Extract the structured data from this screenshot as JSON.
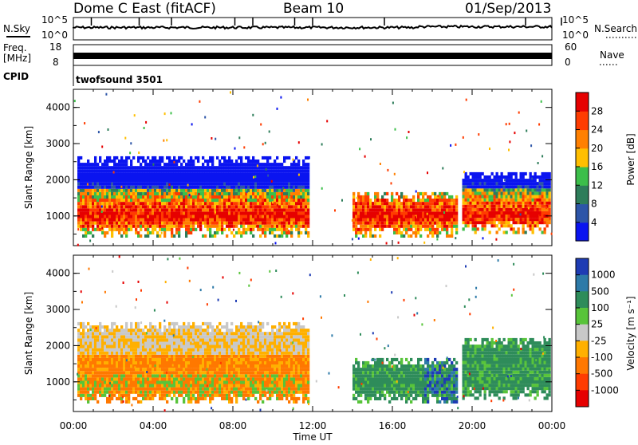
{
  "header": {
    "title": "Dome C East (fitACF)",
    "beam": "Beam 10",
    "date": "01/Sep/2013"
  },
  "strips": {
    "nsky_label": "N.Sky",
    "nsky_ticks": [
      "10^5",
      "10^0"
    ],
    "nsearch_label": "N.Search",
    "nsearch_ticks": [
      "10^5",
      "10^0"
    ],
    "freq_label": "Freq.",
    "freq_unit": "[MHz]",
    "freq_ticks": [
      "18",
      "8"
    ],
    "nave_label": "Nave",
    "nave_ticks": [
      "60",
      "0"
    ],
    "cpid_label": "CPID",
    "cpid_value": "twofsound 3501"
  },
  "chart_data": [
    {
      "type": "heatmap",
      "title": "",
      "xlabel": "",
      "ylabel": "Slant Range [km]",
      "x_range_hours": [
        0,
        24
      ],
      "ylim": [
        180,
        4500
      ],
      "x_ticks": [
        "00:00",
        "04:00",
        "08:00",
        "12:00",
        "16:00",
        "20:00",
        "00:00"
      ],
      "y_ticks": [
        1000,
        2000,
        3000,
        4000
      ],
      "colorbar": {
        "label": "Power [dB]",
        "ticks": [
          4,
          8,
          12,
          16,
          20,
          24,
          28
        ],
        "colors": [
          "#0a14f0",
          "#2d55a8",
          "#2e7d5a",
          "#3cbf4a",
          "#ffbf00",
          "#ff8000",
          "#ff3c00",
          "#e60000"
        ]
      },
      "regions": [
        {
          "t0": 0.2,
          "t1": 11.8,
          "r0": 400,
          "r1": 2600,
          "level": "high"
        },
        {
          "t0": 14.0,
          "t1": 19.2,
          "r0": 400,
          "r1": 1600,
          "level": "high"
        },
        {
          "t0": 19.5,
          "t1": 23.9,
          "r0": 500,
          "r1": 2200,
          "level": "high"
        }
      ]
    },
    {
      "type": "heatmap",
      "title": "",
      "xlabel": "Time UT",
      "ylabel": "Slant Range [km]",
      "x_range_hours": [
        0,
        24
      ],
      "ylim": [
        180,
        4500
      ],
      "x_ticks": [
        "00:00",
        "04:00",
        "08:00",
        "12:00",
        "16:00",
        "20:00",
        "00:00"
      ],
      "y_ticks": [
        1000,
        2000,
        3000,
        4000
      ],
      "colorbar": {
        "label": "Velocity [m s⁻¹]",
        "ticks": [
          1000,
          500,
          100,
          25,
          -25,
          -100,
          -500,
          -1000
        ],
        "colors": [
          "#1e3cb4",
          "#2d7aa8",
          "#2e8c5a",
          "#58c43a",
          "#c8c8c8",
          "#ffb000",
          "#ff7800",
          "#ff3c00",
          "#e60000"
        ]
      },
      "regions": [
        {
          "t0": 0.2,
          "t1": 11.8,
          "r0": 400,
          "r1": 2600,
          "velocity": "negative"
        },
        {
          "t0": 14.0,
          "t1": 19.2,
          "r0": 400,
          "r1": 1600,
          "velocity": "positive"
        },
        {
          "t0": 19.5,
          "t1": 23.9,
          "r0": 500,
          "r1": 2200,
          "velocity": "positive"
        }
      ]
    }
  ]
}
